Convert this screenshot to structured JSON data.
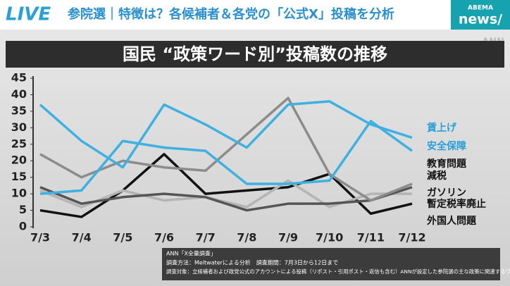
{
  "header": {
    "live": "LIVE",
    "title": "参院選｜特徴は？各候補者＆各党の「公式X」投稿を分析",
    "logo_top": "ABEMA",
    "logo_bottom": "news/"
  },
  "watermark": "ANN",
  "chart_data": {
    "type": "line",
    "title": "国民 “政策ワード別”投稿数の推移",
    "categories": [
      "7/3",
      "7/4",
      "7/5",
      "7/6",
      "7/7",
      "7/8",
      "7/9",
      "7/10",
      "7/11",
      "7/12"
    ],
    "ylim": [
      0,
      45
    ],
    "yticks": [
      0,
      5,
      10,
      15,
      20,
      25,
      30,
      35,
      40,
      45
    ],
    "grid": false,
    "series": [
      {
        "name": "賃上げ",
        "color": "#3fb0e2",
        "label_color": "#2a9fd8",
        "values": [
          37,
          26,
          18,
          37,
          31,
          24,
          37,
          38,
          31,
          27
        ]
      },
      {
        "name": "安全保障",
        "color": "#3fb0e2",
        "label_color": "#2a9fd8",
        "values": [
          10,
          11,
          26,
          24,
          23,
          13,
          13,
          14,
          32,
          23
        ]
      },
      {
        "name": "教育問題",
        "color": "#8c8c8c",
        "label_color": "#111111",
        "values": [
          22,
          15,
          20,
          18,
          17,
          28,
          39,
          16,
          8,
          13
        ]
      },
      {
        "name": "減税",
        "color": "#555555",
        "label_color": "#111111",
        "values": [
          12,
          7,
          9,
          10,
          9,
          5,
          7,
          7,
          8,
          12
        ]
      },
      {
        "name": "ガソリン\n暫定税率廃止",
        "color": "#b4b4b4",
        "label_color": "#111111",
        "values": [
          11,
          6,
          11,
          8,
          9,
          6,
          14,
          6,
          10,
          10
        ]
      },
      {
        "name": "外国人問題",
        "color": "#111111",
        "label_color": "#111111",
        "values": [
          5,
          3,
          11,
          22,
          10,
          11,
          12,
          16,
          4,
          7
        ]
      }
    ]
  },
  "footnote": [
    "ANN「X全量調査」",
    "調査方法：Meltwaterによる分析　調査期間：7月3日から12日まで",
    "調査対象：立候補者および政党公式のアカウントによる投稿（リポスト・引用ポスト・返信も含む）ANNが設定した参院選の主な政策に関連するワード"
  ]
}
